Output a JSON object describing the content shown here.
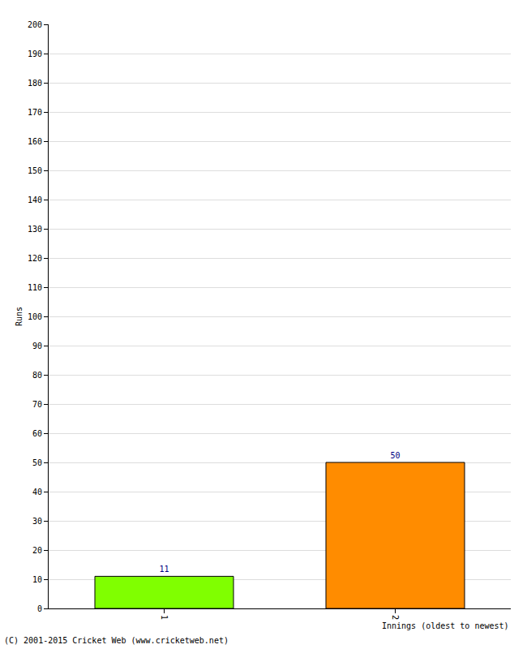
{
  "chart_data": {
    "type": "bar",
    "categories": [
      "1",
      "2"
    ],
    "values": [
      11,
      50
    ],
    "colors": [
      "#80ff00",
      "#ff8c00"
    ],
    "y_label": "Runs",
    "x_label": "Innings (oldest to newest)",
    "ylim": [
      0,
      200
    ],
    "yticks": [
      0,
      10,
      20,
      30,
      40,
      50,
      60,
      70,
      80,
      90,
      100,
      110,
      120,
      130,
      140,
      150,
      160,
      170,
      180,
      190,
      200
    ],
    "grid": true,
    "data_labels": true,
    "annotations": [
      {
        "text": "(C) 2001-2015 Cricket Web (www.cricketweb.net)"
      }
    ]
  }
}
